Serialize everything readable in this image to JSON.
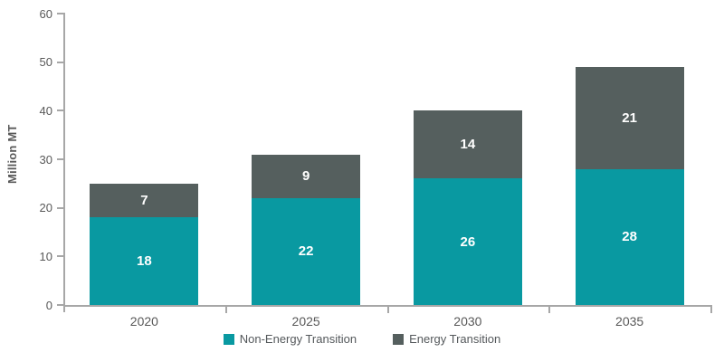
{
  "chart_data": {
    "type": "bar",
    "stacked": true,
    "title": "",
    "categories": [
      "2020",
      "2025",
      "2030",
      "2035"
    ],
    "series": [
      {
        "name": "Non-Energy Transition",
        "color": "#0999A1",
        "values": [
          18,
          22,
          26,
          28
        ]
      },
      {
        "name": "Energy Transition",
        "color": "#555F5E",
        "values": [
          7,
          9,
          14,
          21
        ]
      }
    ],
    "totals": [
      25,
      31,
      40,
      49
    ],
    "xlabel": "",
    "ylabel": "Million MT",
    "ylim": [
      0,
      60
    ],
    "yticks": [
      0,
      10,
      20,
      30,
      40,
      50,
      60
    ],
    "grid": false,
    "legend_position": "bottom",
    "value_labels": "inside-white-bold"
  },
  "colors": {
    "non_energy_transition": "#0999A1",
    "energy_transition": "#555F5E",
    "axis_line": "#A7A7A7",
    "axis_text": "#595959",
    "legend_text": "#54585B",
    "background": "#FFFFFF"
  }
}
